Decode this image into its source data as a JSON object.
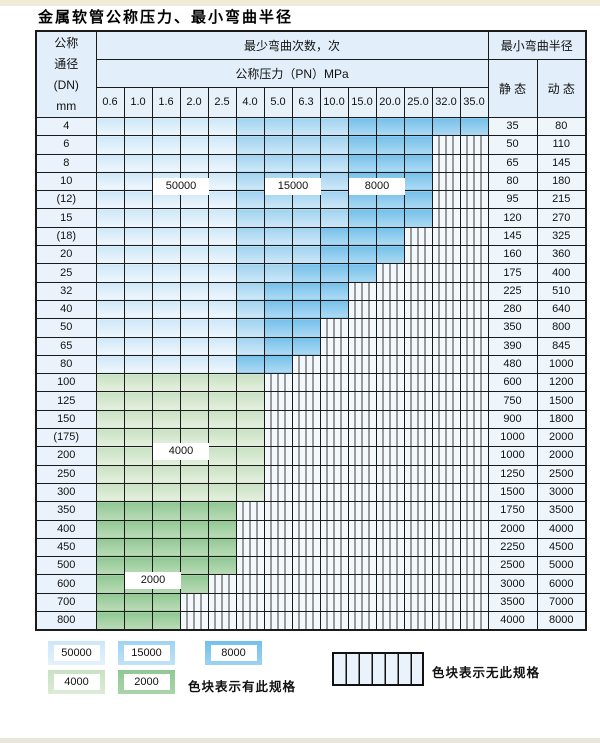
{
  "title": "金属软管公称压力、最小弯曲半径",
  "header": {
    "dn_lines": [
      "公称",
      "通径",
      "(DN)",
      "mm"
    ],
    "cycles": "最少弯曲次数，次",
    "pressure": "公称压力（PN）MPa",
    "radius": "最小弯曲半径",
    "static": "静 态",
    "dynamic": "动 态",
    "pressures": [
      "0.6",
      "1.0",
      "1.6",
      "2.0",
      "2.5",
      "4.0",
      "5.0",
      "6.3",
      "10.0",
      "15.0",
      "20.0",
      "25.0",
      "32.0",
      "35.0"
    ]
  },
  "cell_legend_meaning": {
    "L": "50000",
    "M": "15000",
    "D": "8000",
    "G": "4000",
    "H": "2000",
    "X": "no-spec"
  },
  "rows": [
    {
      "dn": "4",
      "cells": "LLLLLMMMMDDDDD",
      "static": "35",
      "dynamic": "80"
    },
    {
      "dn": "6",
      "cells": "LLLLLMMMMDDDXX",
      "static": "50",
      "dynamic": "110"
    },
    {
      "dn": "8",
      "cells": "LLLLLMMMMDDDXX",
      "static": "65",
      "dynamic": "145"
    },
    {
      "dn": "10",
      "cells": "LLLLLMMMMDDDXX",
      "static": "80",
      "dynamic": "180"
    },
    {
      "dn": "(12)",
      "cells": "LLLLLMMMMDDDXX",
      "static": "95",
      "dynamic": "215"
    },
    {
      "dn": "15",
      "cells": "LLLLLMMMMDDDXX",
      "static": "120",
      "dynamic": "270"
    },
    {
      "dn": "(18)",
      "cells": "LLLLLMMMDDDXXX",
      "static": "145",
      "dynamic": "325"
    },
    {
      "dn": "20",
      "cells": "LLLLLMMMDDDXXX",
      "static": "160",
      "dynamic": "360"
    },
    {
      "dn": "25",
      "cells": "LLLLLMMDDDXXXX",
      "static": "175",
      "dynamic": "400"
    },
    {
      "dn": "32",
      "cells": "LLLLLMDDDXXXXX",
      "static": "225",
      "dynamic": "510"
    },
    {
      "dn": "40",
      "cells": "LLLLLMDDDXXXXX",
      "static": "280",
      "dynamic": "640"
    },
    {
      "dn": "50",
      "cells": "LLLLLMDDXXXXXX",
      "static": "350",
      "dynamic": "800"
    },
    {
      "dn": "65",
      "cells": "LLLLLMDDXXXXXX",
      "static": "390",
      "dynamic": "845"
    },
    {
      "dn": "80",
      "cells": "LLLLLDDXXXXXXX",
      "static": "480",
      "dynamic": "1000"
    },
    {
      "dn": "100",
      "cells": "GGGGGGXXXXXXXX",
      "static": "600",
      "dynamic": "1200"
    },
    {
      "dn": "125",
      "cells": "GGGGGGXXXXXXXX",
      "static": "750",
      "dynamic": "1500"
    },
    {
      "dn": "150",
      "cells": "GGGGGGXXXXXXXX",
      "static": "900",
      "dynamic": "1800"
    },
    {
      "dn": "(175)",
      "cells": "GGGGGGXXXXXXXX",
      "static": "1000",
      "dynamic": "2000"
    },
    {
      "dn": "200",
      "cells": "GGGGGGXXXXXXXX",
      "static": "1000",
      "dynamic": "2000"
    },
    {
      "dn": "250",
      "cells": "GGGGGGXXXXXXXX",
      "static": "1250",
      "dynamic": "2500"
    },
    {
      "dn": "300",
      "cells": "GGGGGGXXXXXXXX",
      "static": "1500",
      "dynamic": "3000"
    },
    {
      "dn": "350",
      "cells": "HHHHHXXXXXXXXX",
      "static": "1750",
      "dynamic": "3500"
    },
    {
      "dn": "400",
      "cells": "HHHHHXXXXXXXXX",
      "static": "2000",
      "dynamic": "4000"
    },
    {
      "dn": "450",
      "cells": "HHHHHXXXXXXXXX",
      "static": "2250",
      "dynamic": "4500"
    },
    {
      "dn": "500",
      "cells": "HHHHHXXXXXXXXX",
      "static": "2500",
      "dynamic": "5000"
    },
    {
      "dn": "600",
      "cells": "HHHHXXXXXXXXXX",
      "static": "3000",
      "dynamic": "6000"
    },
    {
      "dn": "700",
      "cells": "HHHXXXXXXXXXXX",
      "static": "3500",
      "dynamic": "7000"
    },
    {
      "dn": "800",
      "cells": "HHHXXXXXXXXXXX",
      "static": "4000",
      "dynamic": "8000"
    }
  ],
  "overlays": [
    {
      "text": "50000",
      "row": 3,
      "col": 2,
      "span": 2,
      "anchor": "center"
    },
    {
      "text": "15000",
      "row": 3,
      "col": 6,
      "span": 2,
      "anchor": "center"
    },
    {
      "text": "8000",
      "row": 3,
      "col": 9,
      "span": 2,
      "anchor": "center"
    },
    {
      "text": "4000",
      "row": 17,
      "col": 2,
      "span": 2,
      "anchor": "boundary"
    },
    {
      "text": "2000",
      "row": 24,
      "col": 1,
      "span": 2,
      "anchor": "boundary"
    }
  ],
  "legend": {
    "swatches": [
      {
        "label": "50000",
        "code": "L"
      },
      {
        "label": "15000",
        "code": "M"
      },
      {
        "label": "8000",
        "code": "D"
      },
      {
        "label": "4000",
        "code": "G"
      },
      {
        "label": "2000",
        "code": "H"
      }
    ],
    "has_spec_label": "色块表示有此规格",
    "no_spec_label": "色块表示无此规格"
  },
  "colors": {
    "c50000": "#cde7f8",
    "c15000": "#9fd3f0",
    "c8000": "#74c0ea",
    "c4000": "#c8e1c3",
    "c2000": "#8fc893",
    "hatch_line": "#3c3c3c",
    "border": "#1b1b1b",
    "header_bg": "#e2eef9"
  }
}
